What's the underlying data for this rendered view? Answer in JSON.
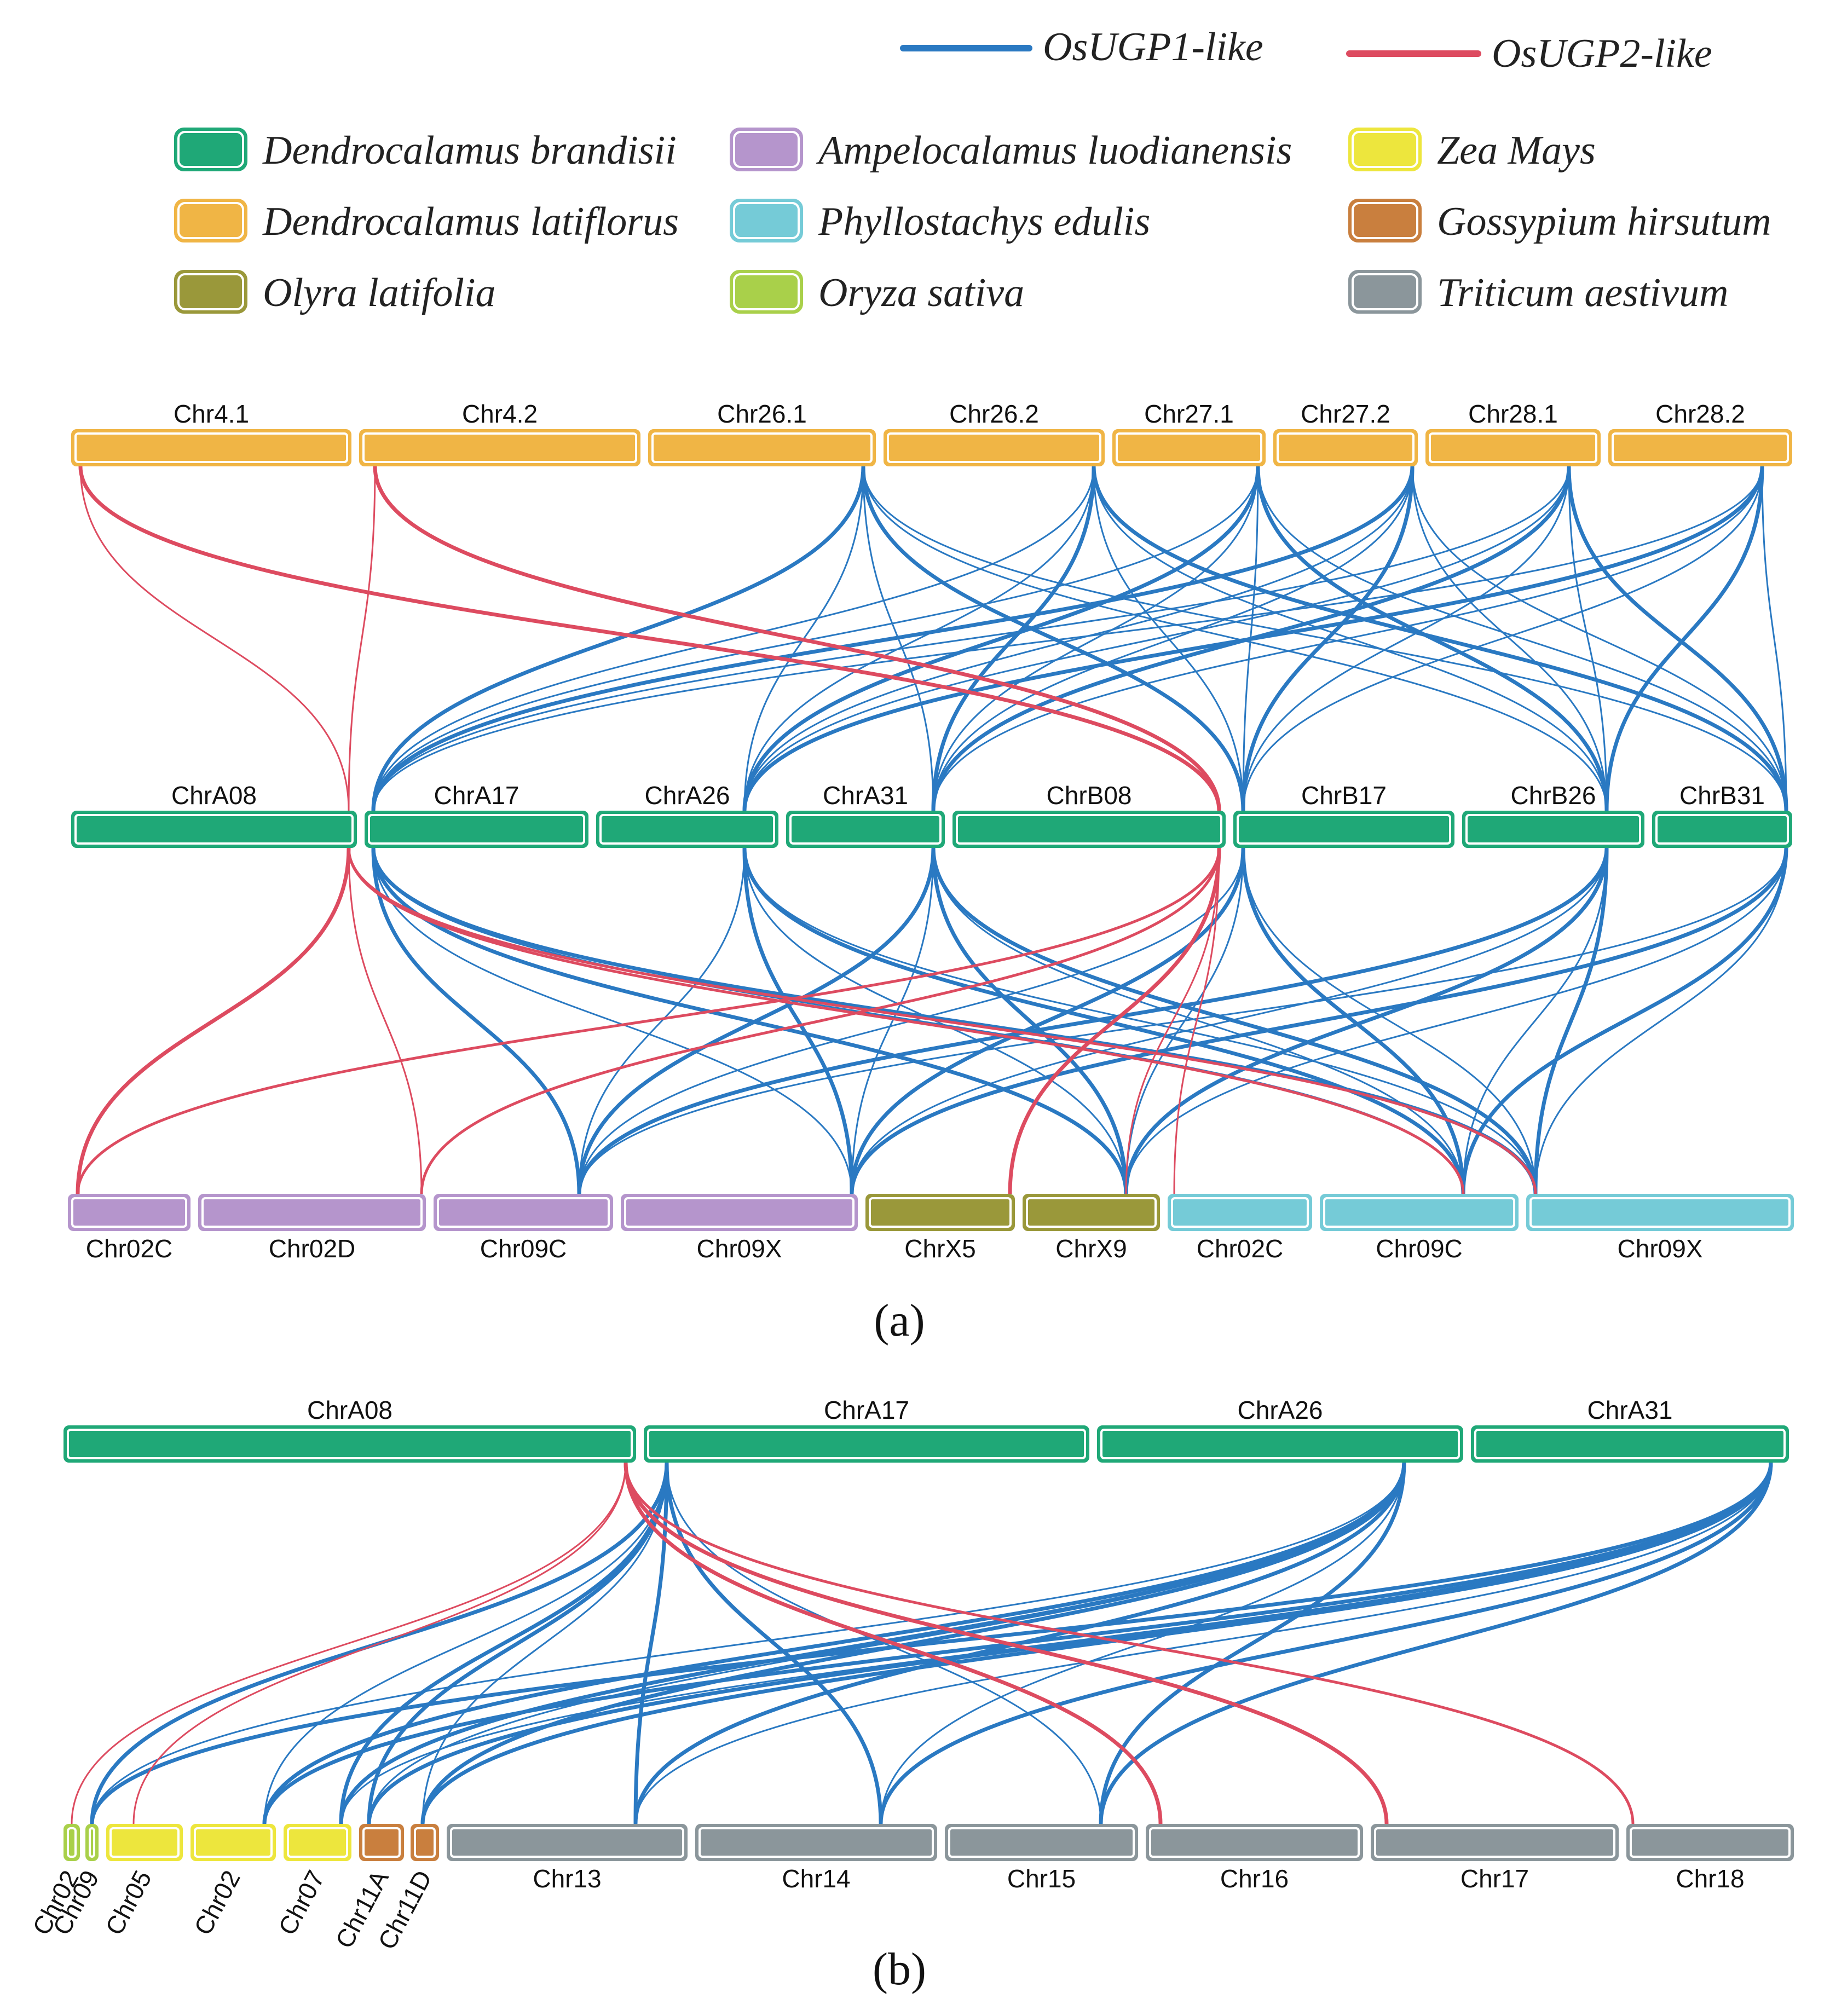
{
  "colors": {
    "ugp1": "#2a79c2",
    "ugp2": "#dd4b60",
    "species": {
      "brandisii": "#1fa877",
      "latiflorus": "#f0b545",
      "olyra": "#9a983a",
      "ampelocalamus": "#b595cc",
      "phyllostachys": "#75cbd7",
      "oryza": "#a9d04a",
      "zea": "#ede63d",
      "gossypium": "#c97f3e",
      "triticum": "#8b969b"
    }
  },
  "legend": {
    "lines": [
      {
        "key": "ugp1",
        "label": "OsUGP1-like"
      },
      {
        "key": "ugp2",
        "label": "OsUGP2-like"
      }
    ],
    "species": [
      {
        "key": "brandisii",
        "label": "Dendrocalamus brandisii"
      },
      {
        "key": "ampelocalamus",
        "label": "Ampelocalamus luodianensis"
      },
      {
        "key": "zea",
        "label": "Zea Mays"
      },
      {
        "key": "latiflorus",
        "label": "Dendrocalamus latiflorus"
      },
      {
        "key": "phyllostachys",
        "label": "Phyllostachys edulis"
      },
      {
        "key": "gossypium",
        "label": "Gossypium hirsutum"
      },
      {
        "key": "olyra",
        "label": "Olyra latifolia"
      },
      {
        "key": "oryza",
        "label": "Oryza sativa"
      },
      {
        "key": "triticum",
        "label": "Triticum aestivum"
      }
    ]
  },
  "panel_a": {
    "label": "(a)",
    "top_row": [
      {
        "name": "Chr4.1",
        "species": "latiflorus"
      },
      {
        "name": "Chr4.2",
        "species": "latiflorus"
      },
      {
        "name": "Chr26.1",
        "species": "latiflorus"
      },
      {
        "name": "Chr26.2",
        "species": "latiflorus"
      },
      {
        "name": "Chr27.1",
        "species": "latiflorus"
      },
      {
        "name": "Chr27.2",
        "species": "latiflorus"
      },
      {
        "name": "Chr28.1",
        "species": "latiflorus"
      },
      {
        "name": "Chr28.2",
        "species": "latiflorus"
      }
    ],
    "middle_row": [
      {
        "name": "ChrA08",
        "species": "brandisii"
      },
      {
        "name": "ChrA17",
        "species": "brandisii"
      },
      {
        "name": "ChrA26",
        "species": "brandisii"
      },
      {
        "name": "ChrA31",
        "species": "brandisii"
      },
      {
        "name": "ChrB08",
        "species": "brandisii"
      },
      {
        "name": "ChrB17",
        "species": "brandisii"
      },
      {
        "name": "ChrB26",
        "species": "brandisii"
      },
      {
        "name": "ChrB31",
        "species": "brandisii"
      }
    ],
    "bottom_row": [
      {
        "name": "Chr02C",
        "species": "ampelocalamus"
      },
      {
        "name": "Chr02D",
        "species": "ampelocalamus"
      },
      {
        "name": "Chr09C",
        "species": "ampelocalamus"
      },
      {
        "name": "Chr09X",
        "species": "ampelocalamus"
      },
      {
        "name": "ChrX5",
        "species": "olyra"
      },
      {
        "name": "ChrX9",
        "species": "olyra"
      },
      {
        "name": "Chr02C",
        "species": "phyllostachys"
      },
      {
        "name": "Chr09C",
        "species": "phyllostachys"
      },
      {
        "name": "Chr09X",
        "species": "phyllostachys"
      }
    ]
  },
  "panel_b": {
    "label": "(b)",
    "top_row": [
      {
        "name": "ChrA08",
        "species": "brandisii"
      },
      {
        "name": "ChrA17",
        "species": "brandisii"
      },
      {
        "name": "ChrA26",
        "species": "brandisii"
      },
      {
        "name": "ChrA31",
        "species": "brandisii"
      }
    ],
    "bottom_row": [
      {
        "name": "Chr02",
        "species": "oryza"
      },
      {
        "name": "Chr09",
        "species": "oryza"
      },
      {
        "name": "Chr05",
        "species": "zea"
      },
      {
        "name": "Chr02",
        "species": "zea"
      },
      {
        "name": "Chr07",
        "species": "zea"
      },
      {
        "name": "Chr11A",
        "species": "gossypium"
      },
      {
        "name": "Chr11D",
        "species": "gossypium"
      },
      {
        "name": "Chr13",
        "species": "triticum"
      },
      {
        "name": "Chr14",
        "species": "triticum"
      },
      {
        "name": "Chr15",
        "species": "triticum"
      },
      {
        "name": "Chr16",
        "species": "triticum"
      },
      {
        "name": "Chr17",
        "species": "triticum"
      },
      {
        "name": "Chr18",
        "species": "triticum"
      }
    ]
  }
}
